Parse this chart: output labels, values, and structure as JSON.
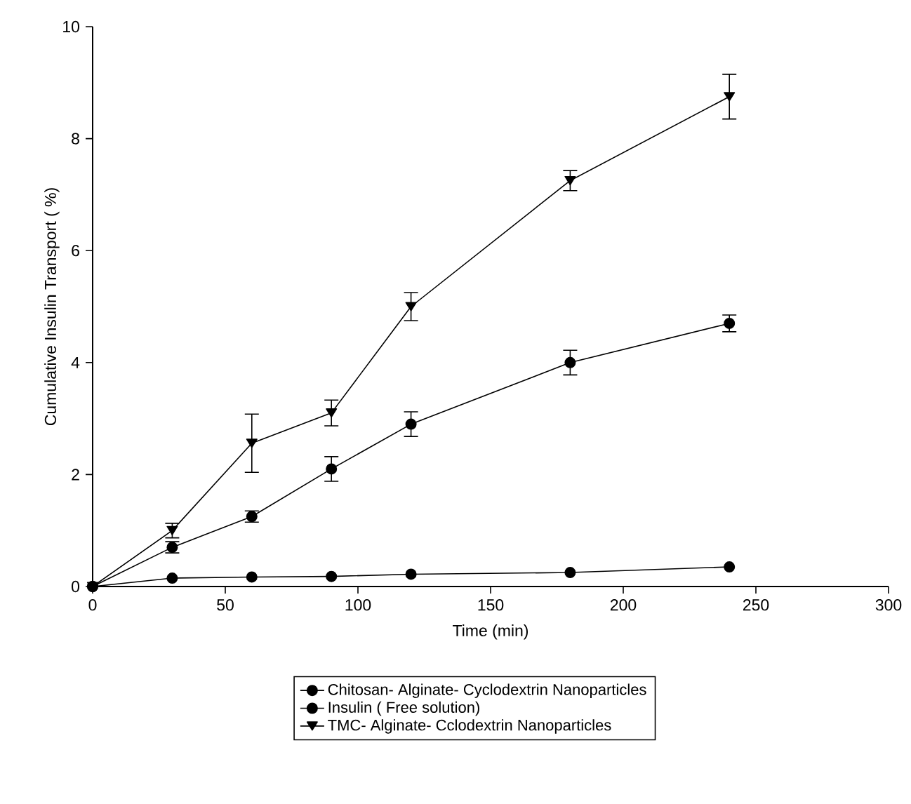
{
  "chart_data": {
    "type": "line",
    "xlabel": "Time (min)",
    "ylabel": "Cumulative Insulin Transport ( %)",
    "x": [
      0,
      30,
      60,
      90,
      120,
      180,
      240
    ],
    "series": [
      {
        "name": "Chitosan- Alginate- Cyclodextrin Nanoparticles",
        "color": "#000000",
        "marker": "circle",
        "values": [
          0,
          0.7,
          1.25,
          2.1,
          2.9,
          4.0,
          4.7
        ],
        "errors": [
          null,
          0.1,
          0.1,
          0.22,
          0.22,
          0.22,
          0.15
        ]
      },
      {
        "name": "Insulin ( Free solution)",
        "color": "#000000",
        "marker": "circle",
        "values": [
          0,
          0.15,
          0.17,
          0.18,
          0.22,
          0.25,
          0.35
        ]
      },
      {
        "name": "TMC- Alginate- Cclodextrin Nanoparticles",
        "color": "#000000",
        "marker": "triangle",
        "values": [
          0,
          1.0,
          2.56,
          3.1,
          5.0,
          7.25,
          8.75
        ],
        "errors": [
          null,
          0.13,
          0.52,
          0.23,
          0.25,
          0.18,
          0.4
        ]
      }
    ],
    "xlim": [
      0,
      300
    ],
    "xticks": [
      0,
      50,
      100,
      150,
      200,
      250,
      300
    ],
    "ylim": [
      0,
      10
    ],
    "yticks": [
      0,
      2,
      4,
      6,
      8,
      10
    ],
    "grid": false,
    "legend": "bottom",
    "line_style": "solid"
  }
}
